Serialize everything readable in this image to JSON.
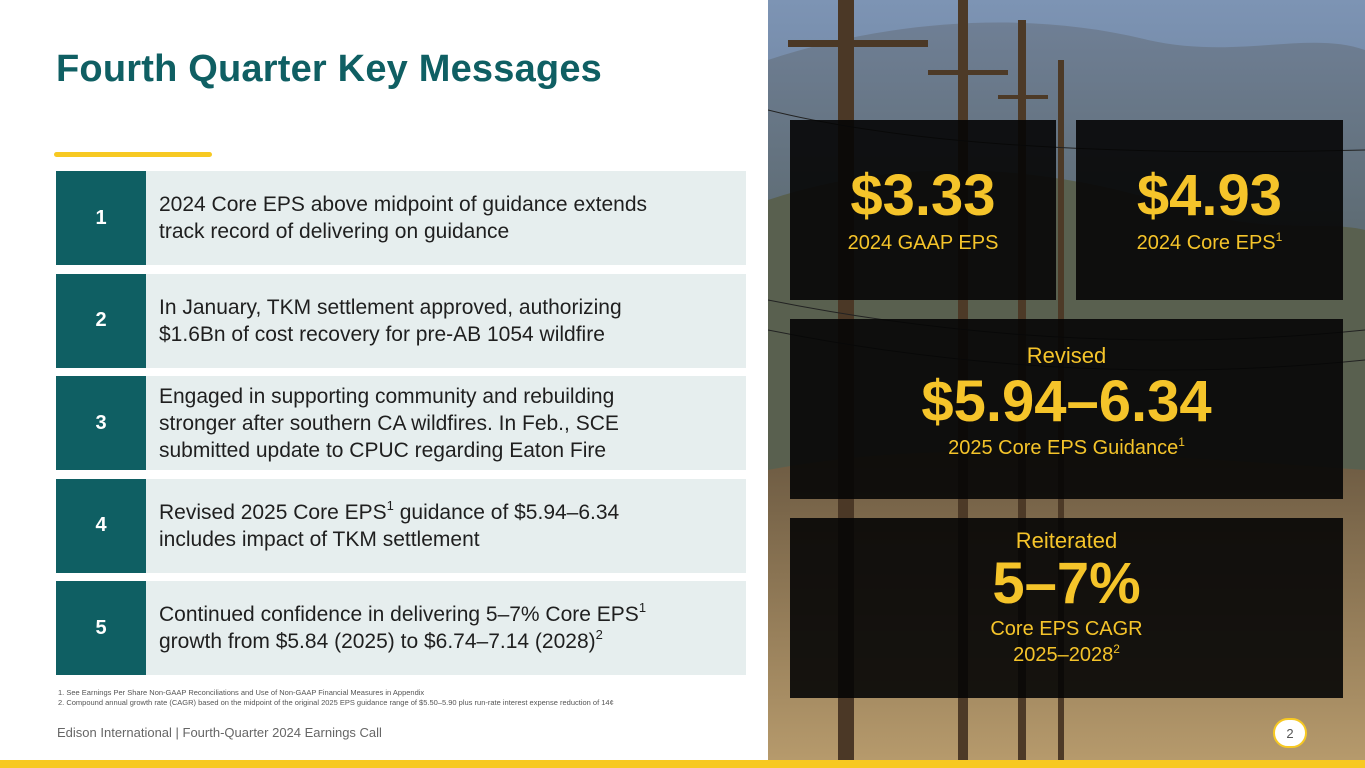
{
  "header": {
    "title": "Fourth Quarter Key Messages"
  },
  "messages": [
    {
      "number": "1",
      "lines": [
        {
          "text": "2024 Core EPS above midpoint of guidance extends"
        },
        {
          "text": "track record of delivering on guidance"
        }
      ]
    },
    {
      "number": "2",
      "lines": [
        {
          "text": "In January, TKM settlement approved, authorizing"
        },
        {
          "text": "$1.6Bn of cost recovery for pre-AB 1054 wildfire"
        }
      ]
    },
    {
      "number": "3",
      "lines": [
        {
          "text": "Engaged in supporting community and rebuilding"
        },
        {
          "text": "stronger after southern CA wildfires. In Feb., SCE"
        },
        {
          "text": "submitted update to CPUC regarding Eaton Fire"
        }
      ]
    },
    {
      "number": "4",
      "lines": [
        {
          "text": "Revised 2025 Core EPS",
          "sup": "1",
          "after": " guidance of $5.94–6.34"
        },
        {
          "text": "includes impact of TKM settlement"
        }
      ]
    },
    {
      "number": "5",
      "lines": [
        {
          "text": "Continued confidence in delivering 5–7% Core EPS",
          "sup": "1"
        },
        {
          "text": "growth from $5.84 (2025) to $6.74–7.14 (2028)",
          "sup": "2"
        }
      ]
    }
  ],
  "footnotes": [
    "1.  See Earnings Per Share Non-GAAP Reconciliations and Use of Non-GAAP Financial Measures in Appendix",
    "2.  Compound annual growth rate (CAGR) based on the midpoint of the original 2025 EPS guidance range of $5.50–5.90 plus run-rate interest expense reduction of 14¢"
  ],
  "footer": {
    "text": "Edison International |  Fourth-Quarter 2024 Earnings Call",
    "page_number": "2"
  },
  "stats": {
    "gaap_eps": {
      "value": "$3.33",
      "label": "2024 GAAP EPS"
    },
    "core_eps": {
      "value": "$4.93",
      "label": "2024 Core EPS",
      "label_sup": "1"
    },
    "guidance": {
      "prefix": "Revised",
      "value": "$5.94–6.34",
      "label": "2025 Core EPS Guidance",
      "label_sup": "1"
    },
    "cagr": {
      "prefix": "Reiterated",
      "value": "5–7%",
      "label": "Core EPS CAGR",
      "label2": "2025–2028",
      "label2_sup": "2"
    }
  },
  "colors": {
    "teal": "#0f5f63",
    "yellow": "#f7c922",
    "gold_text": "#f5c42a",
    "light_panel": "#e6eeee"
  },
  "image": {
    "description_icon": "power-lines-photo"
  }
}
